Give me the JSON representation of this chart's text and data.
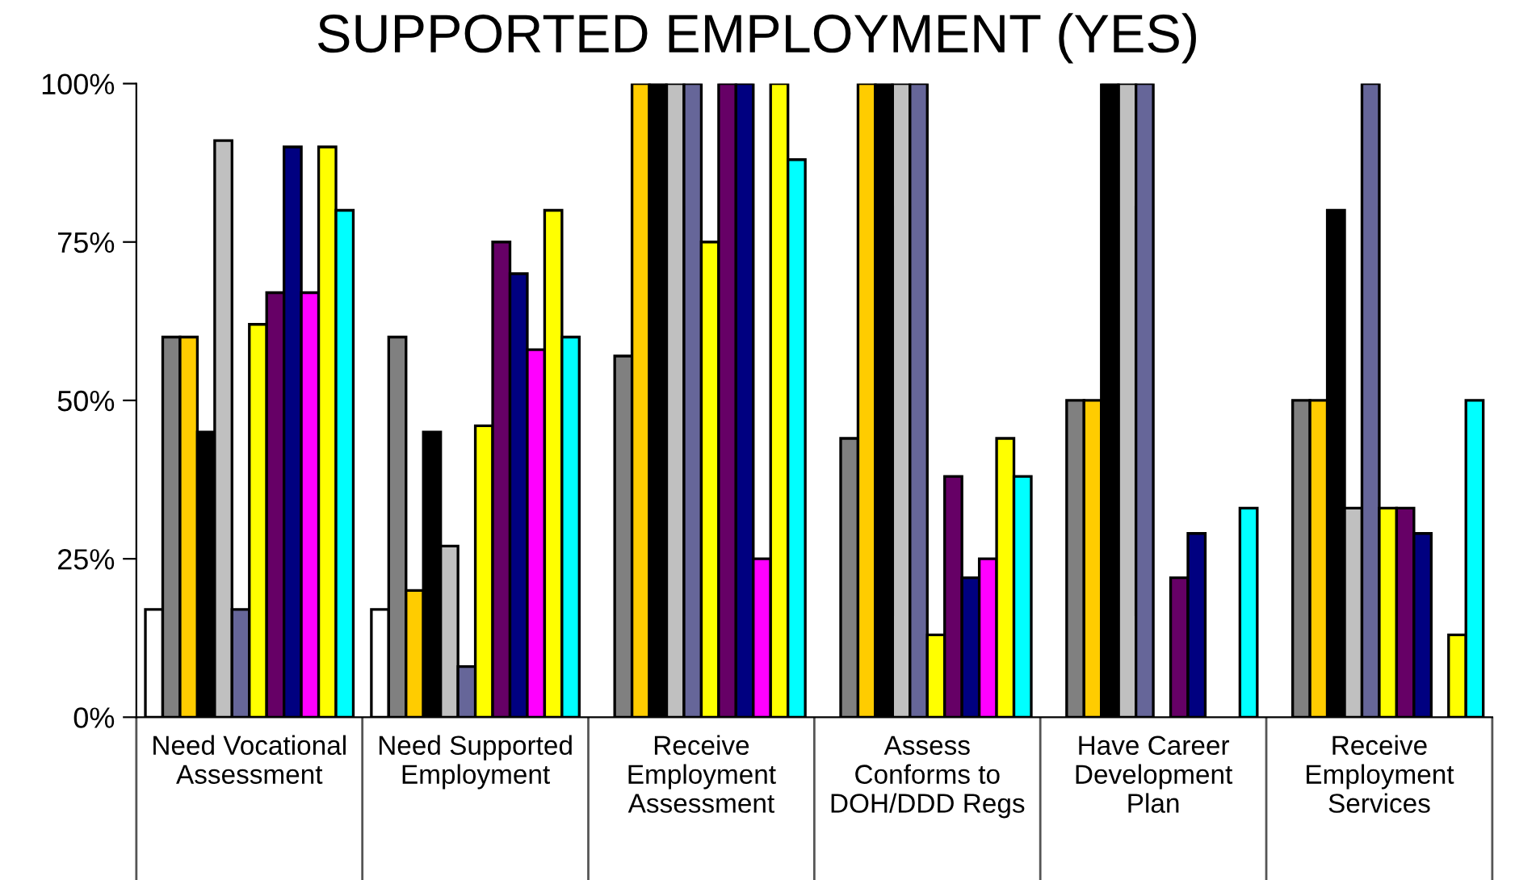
{
  "chart_data": {
    "type": "bar",
    "title": "SUPPORTED EMPLOYMENT (YES)",
    "categories": [
      "Need Vocational\nAssessment",
      "Need Supported\nEmployment",
      "Receive\nEmployment\nAssessment",
      "Assess\nConforms to\nDOH/DDD Regs",
      "Have Career\nDevelopment\nPlan",
      "Receive\nEmployment\nServices"
    ],
    "ylim": [
      0,
      100
    ],
    "yticks": [
      {
        "value": 0,
        "label": "0%"
      },
      {
        "value": 25,
        "label": "25%"
      },
      {
        "value": 50,
        "label": "50%"
      },
      {
        "value": 75,
        "label": "75%"
      },
      {
        "value": 100,
        "label": "100%"
      }
    ],
    "grid": false,
    "legend": false,
    "series": [
      {
        "color": "#ffffff",
        "values": [
          17,
          17,
          0,
          0,
          0,
          0
        ]
      },
      {
        "color": "#808080",
        "values": [
          60,
          60,
          57,
          44,
          50,
          50
        ]
      },
      {
        "color": "#ffcc00",
        "values": [
          60,
          20,
          100,
          100,
          50,
          50
        ]
      },
      {
        "color": "#000000",
        "values": [
          45,
          45,
          100,
          100,
          100,
          80
        ]
      },
      {
        "color": "#c0c0c0",
        "values": [
          91,
          27,
          100,
          100,
          100,
          33
        ]
      },
      {
        "color": "#666699",
        "values": [
          17,
          8,
          100,
          100,
          100,
          100
        ]
      },
      {
        "color": "#ffff00",
        "values": [
          62,
          46,
          75,
          13,
          0,
          33
        ]
      },
      {
        "color": "#660066",
        "values": [
          67,
          75,
          100,
          38,
          22,
          33
        ]
      },
      {
        "color": "#000080",
        "values": [
          90,
          70,
          100,
          22,
          29,
          29
        ]
      },
      {
        "color": "#ff00ff",
        "values": [
          67,
          58,
          25,
          25,
          0,
          0
        ]
      },
      {
        "color": "#ffff00",
        "values": [
          90,
          80,
          100,
          44,
          0,
          13
        ]
      },
      {
        "color": "#00ffff",
        "values": [
          80,
          60,
          88,
          38,
          33,
          50
        ]
      }
    ]
  }
}
